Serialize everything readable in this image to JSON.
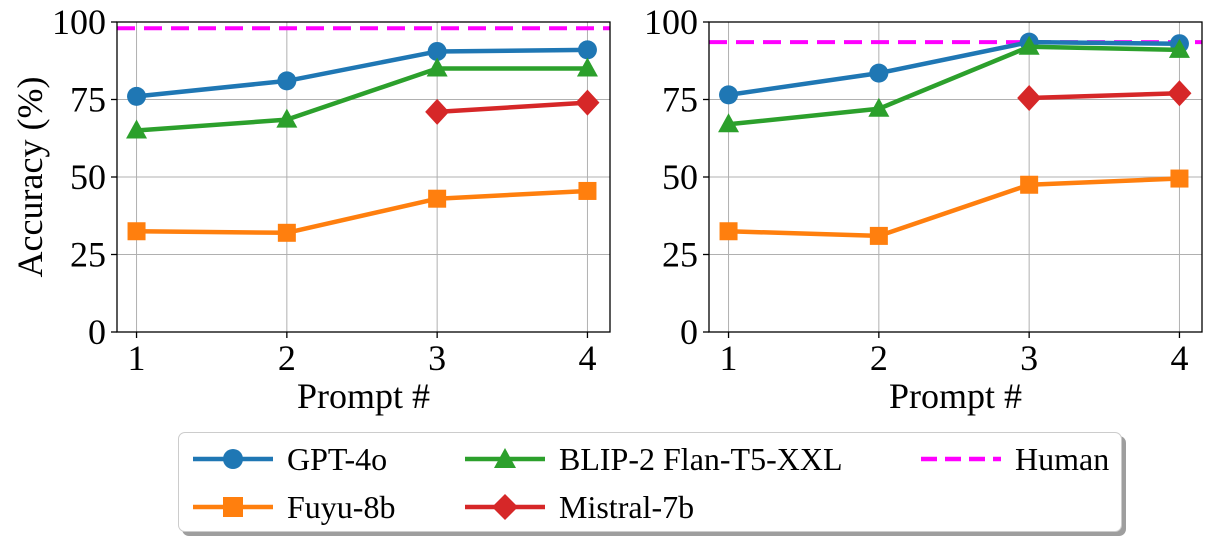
{
  "chart_data": [
    {
      "type": "line",
      "panel": "left",
      "title": "",
      "xlabel": "Prompt #",
      "ylabel": "Accuracy (%)",
      "x": [
        1,
        2,
        3,
        4
      ],
      "xticks": [
        "1",
        "2",
        "3",
        "4"
      ],
      "yticks": [
        "0",
        "25",
        "50",
        "75",
        "100"
      ],
      "ylim": [
        0,
        100
      ],
      "grid": true,
      "series": [
        {
          "name": "GPT-4o",
          "values": [
            76.0,
            81.0,
            90.5,
            91.0
          ],
          "color": "#1f77b4",
          "marker": "circle"
        },
        {
          "name": "Fuyu-8b",
          "values": [
            32.5,
            32.0,
            43.0,
            45.5
          ],
          "color": "#ff7f0e",
          "marker": "square"
        },
        {
          "name": "BLIP-2 Flan-T5-XXL",
          "values": [
            65.0,
            68.5,
            85.0,
            85.0
          ],
          "color": "#2ca02c",
          "marker": "triangle"
        },
        {
          "name": "Mistral-7b",
          "values": [
            null,
            null,
            71.0,
            74.0
          ],
          "color": "#d62728",
          "marker": "diamond"
        }
      ],
      "reference_line": {
        "name": "Human",
        "value": 98.0,
        "color": "#ff00ff",
        "style": "dashed"
      }
    },
    {
      "type": "line",
      "panel": "right",
      "title": "",
      "xlabel": "Prompt #",
      "ylabel": "",
      "x": [
        1,
        2,
        3,
        4
      ],
      "xticks": [
        "1",
        "2",
        "3",
        "4"
      ],
      "yticks": [
        "0",
        "25",
        "50",
        "75",
        "100"
      ],
      "ylim": [
        0,
        100
      ],
      "grid": true,
      "series": [
        {
          "name": "GPT-4o",
          "values": [
            76.5,
            83.5,
            93.5,
            93.0
          ],
          "color": "#1f77b4",
          "marker": "circle"
        },
        {
          "name": "Fuyu-8b",
          "values": [
            32.5,
            31.0,
            47.5,
            49.5
          ],
          "color": "#ff7f0e",
          "marker": "square"
        },
        {
          "name": "BLIP-2 Flan-T5-XXL",
          "values": [
            67.0,
            72.0,
            92.0,
            91.0
          ],
          "color": "#2ca02c",
          "marker": "triangle"
        },
        {
          "name": "Mistral-7b",
          "values": [
            null,
            null,
            75.5,
            77.0
          ],
          "color": "#d62728",
          "marker": "diamond"
        }
      ],
      "reference_line": {
        "name": "Human",
        "value": 93.5,
        "color": "#ff00ff",
        "style": "dashed"
      }
    }
  ],
  "legend": {
    "placement": "bottom-center",
    "items": [
      {
        "label": "GPT-4o",
        "color": "#1f77b4",
        "marker": "circle",
        "style": "solid"
      },
      {
        "label": "Fuyu-8b",
        "color": "#ff7f0e",
        "marker": "square",
        "style": "solid"
      },
      {
        "label": "BLIP-2 Flan-T5-XXL",
        "color": "#2ca02c",
        "marker": "triangle",
        "style": "solid"
      },
      {
        "label": "Mistral-7b",
        "color": "#d62728",
        "marker": "diamond",
        "style": "solid"
      },
      {
        "label": "Human",
        "color": "#ff00ff",
        "marker": "none",
        "style": "dashed"
      }
    ]
  }
}
